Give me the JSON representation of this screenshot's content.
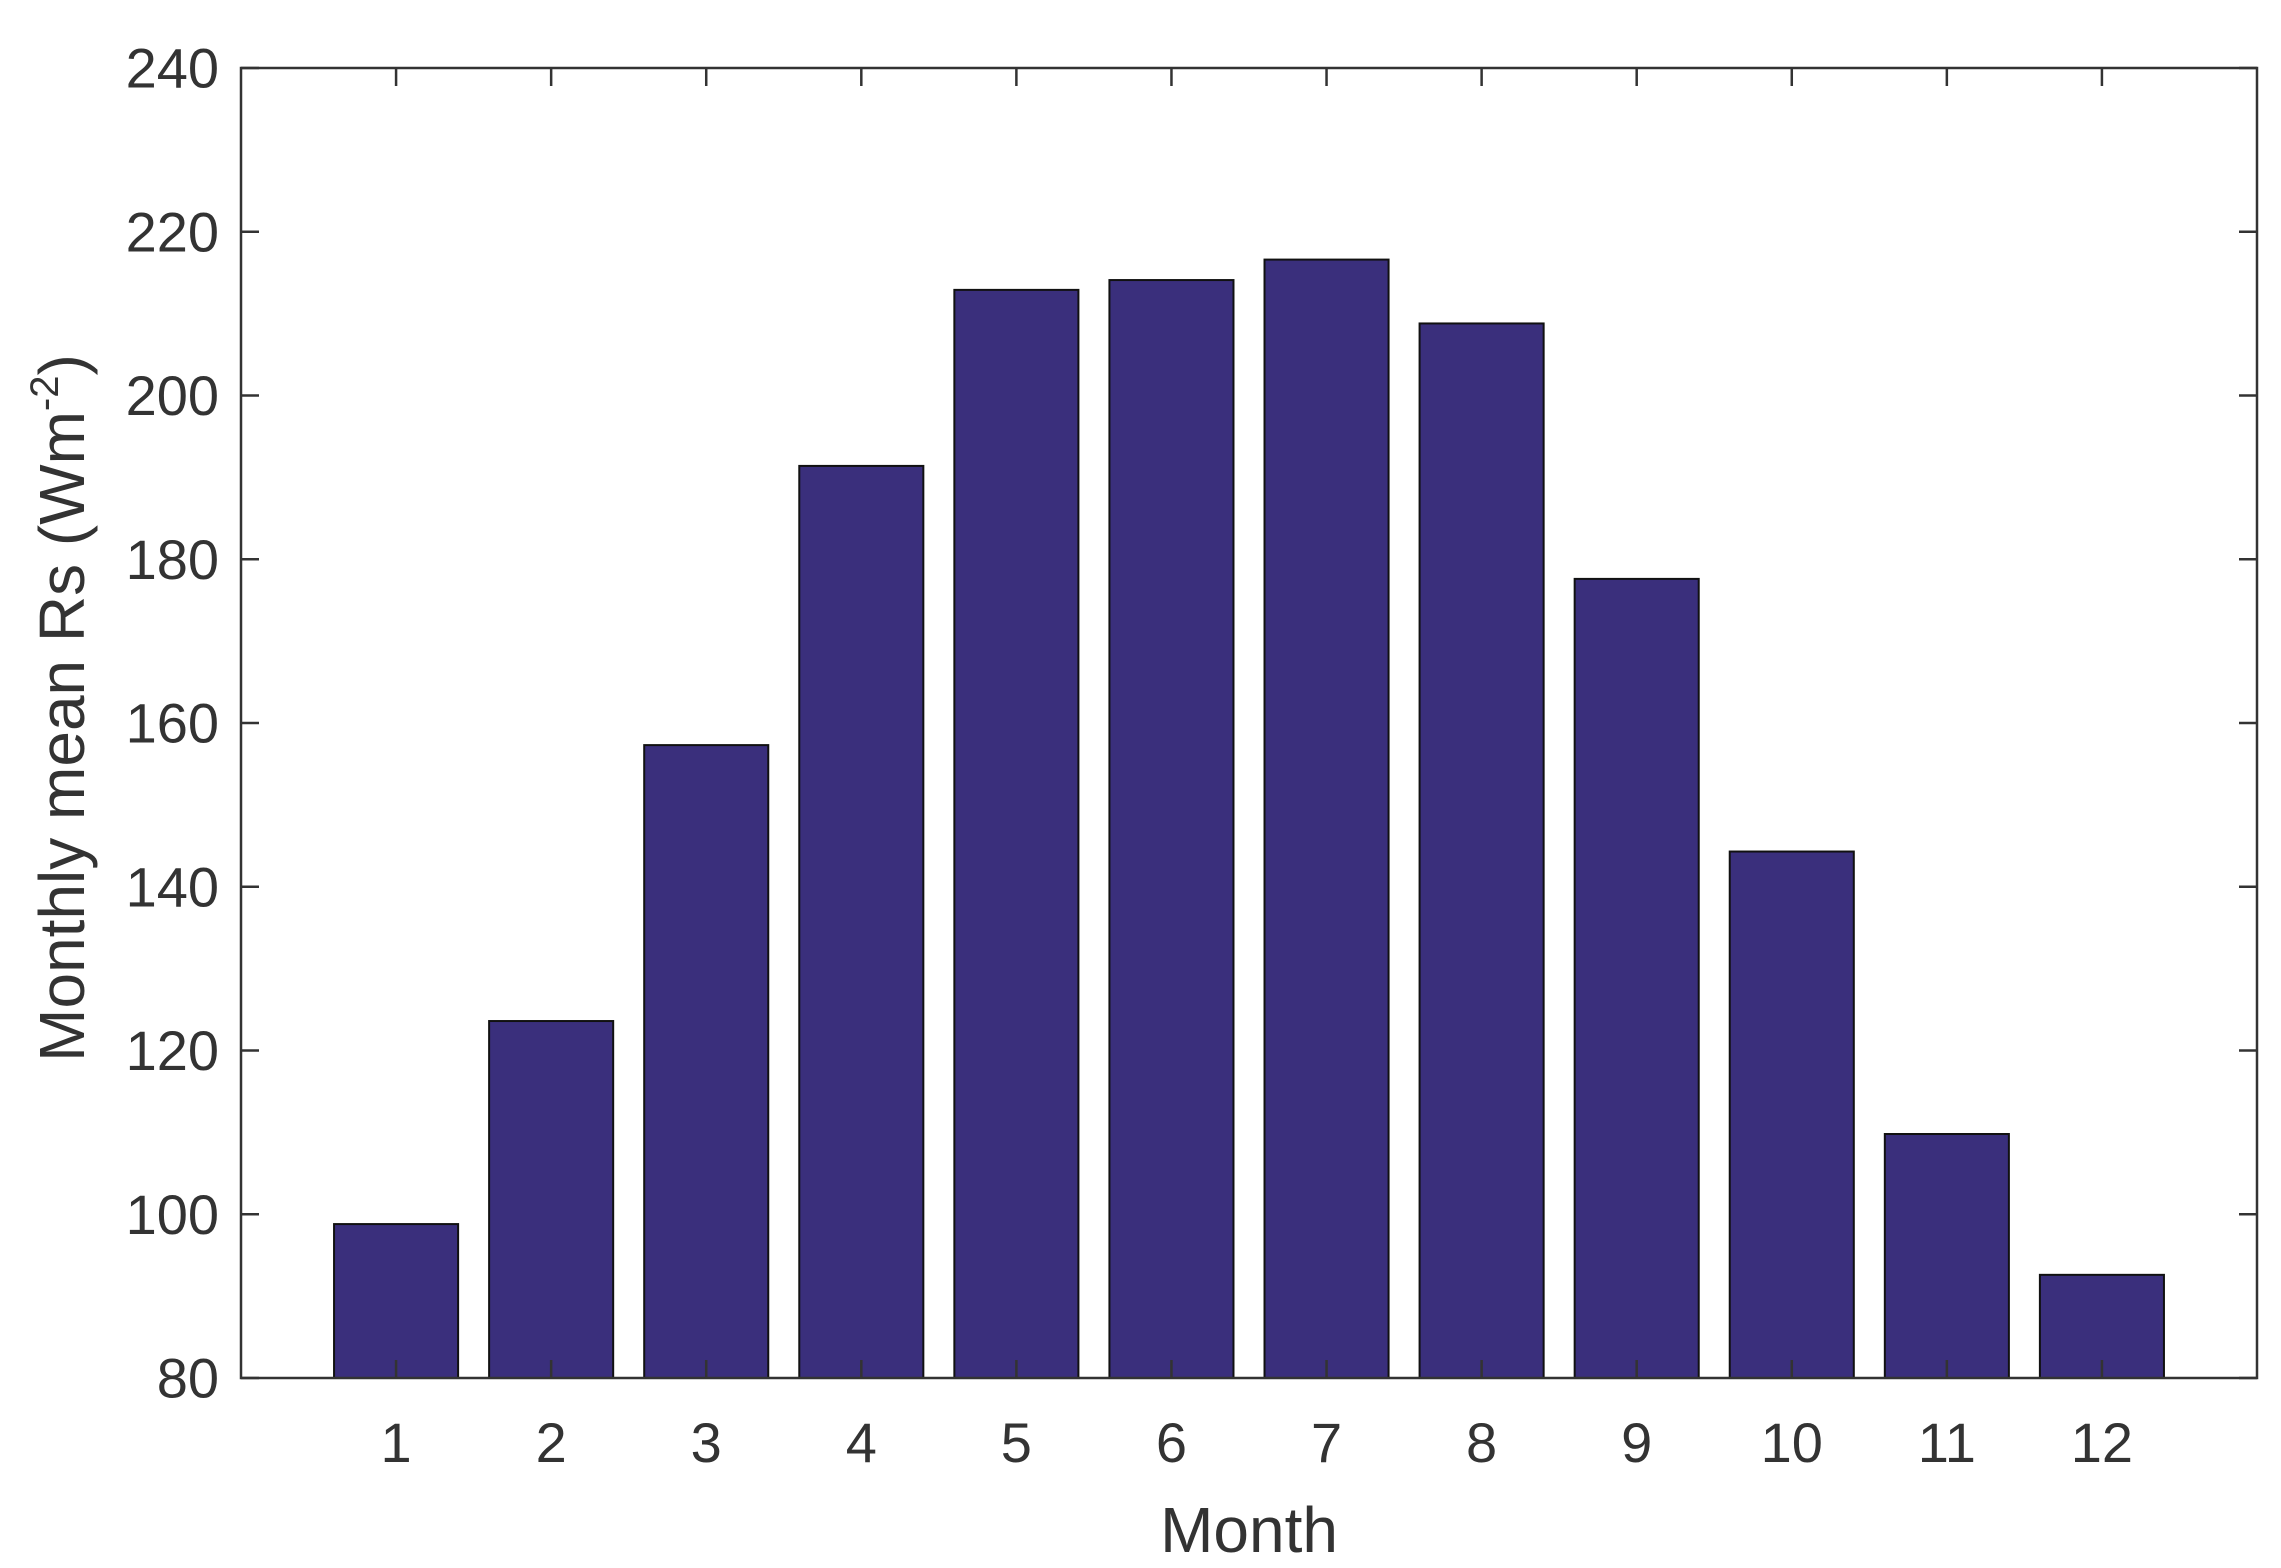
{
  "chart_data": {
    "type": "bar",
    "categories": [
      "1",
      "2",
      "3",
      "4",
      "5",
      "6",
      "7",
      "8",
      "9",
      "10",
      "11",
      "12"
    ],
    "series": [
      {
        "values": [
          98.8,
          123.6,
          157.3,
          191.4,
          212.9,
          214.1,
          216.6,
          208.8,
          177.6,
          144.3,
          109.8,
          92.6
        ]
      }
    ],
    "xlabel": "Month",
    "ylabel": {
      "main": "Monthly mean Rs (Wm",
      "superscript": "-2",
      "suffix": ")"
    },
    "ylim": [
      80,
      240
    ],
    "yticks": [
      80,
      100,
      120,
      140,
      160,
      180,
      200,
      220,
      240
    ],
    "grid": false,
    "legend": "none",
    "bar_color": "#3a2f7c",
    "bar_edge_color": "#111111",
    "axis_color": "#333333"
  }
}
